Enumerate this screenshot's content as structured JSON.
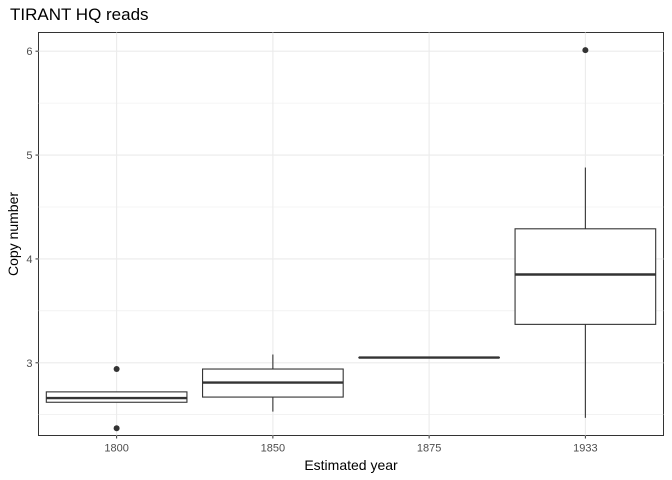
{
  "chart_data": {
    "type": "boxplot",
    "title": "TIRANT HQ reads",
    "xlabel": "Estimated year",
    "ylabel": "Copy number",
    "categories": [
      "1800",
      "1850",
      "1875",
      "1933"
    ],
    "y_ticks": [
      3,
      4,
      5,
      6
    ],
    "ylim": [
      2.3,
      6.18
    ],
    "grid": true,
    "boxes": [
      {
        "category": "1800",
        "whisker_low": 2.62,
        "q1": 2.62,
        "median": 2.66,
        "q3": 2.72,
        "whisker_high": 2.72,
        "outliers": [
          2.94,
          2.37
        ]
      },
      {
        "category": "1850",
        "whisker_low": 2.53,
        "q1": 2.67,
        "median": 2.81,
        "q3": 2.94,
        "whisker_high": 3.08,
        "outliers": []
      },
      {
        "category": "1875",
        "whisker_low": 3.05,
        "q1": 3.05,
        "median": 3.05,
        "q3": 3.05,
        "whisker_high": 3.05,
        "outliers": []
      },
      {
        "category": "1933",
        "whisker_low": 2.47,
        "q1": 3.37,
        "median": 3.85,
        "q3": 4.29,
        "whisker_high": 4.88,
        "outliers": [
          6.01
        ]
      }
    ]
  }
}
